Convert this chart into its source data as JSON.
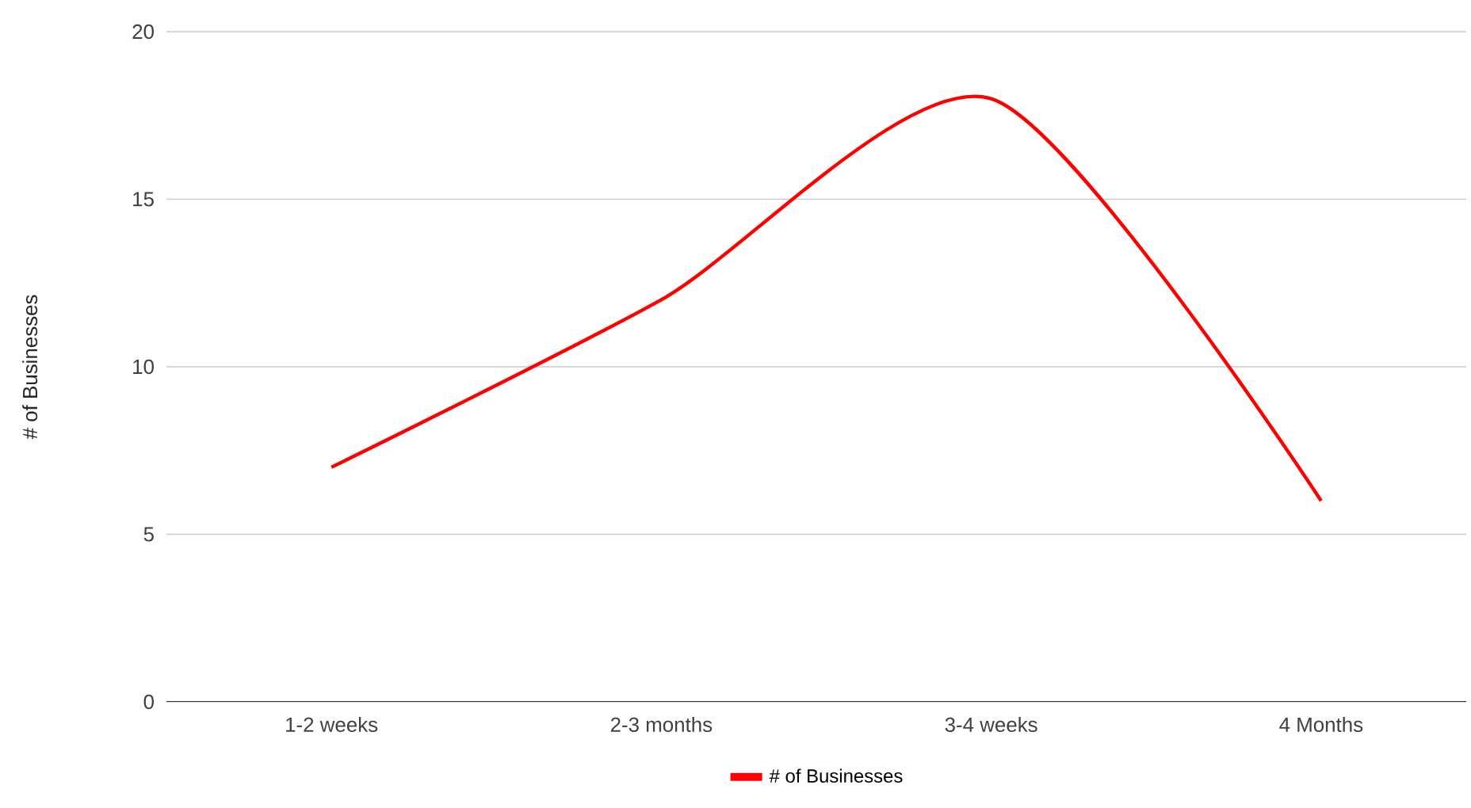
{
  "chart_data": {
    "type": "line",
    "ylabel": "# of Businesses",
    "categories": [
      "1-2 weeks",
      "2-3 months",
      "3-4 weeks",
      "4 Months"
    ],
    "series": [
      {
        "name": "# of Businesses",
        "color": "#ff0000",
        "values": [
          7,
          12,
          18,
          6
        ]
      }
    ],
    "ylim": [
      0,
      20
    ],
    "yticks": [
      0,
      5,
      10,
      15,
      20
    ],
    "grid": "y",
    "legend": "bottom",
    "marker": "none",
    "line_style": "solid"
  }
}
